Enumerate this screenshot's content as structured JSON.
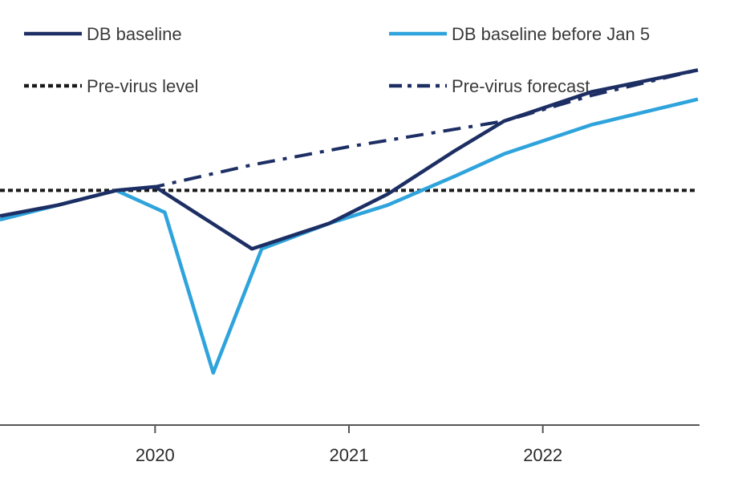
{
  "chart_data": {
    "type": "line",
    "title": "",
    "xlabel": "",
    "ylabel": "",
    "x_ticks": [
      "2020",
      "2021",
      "2022"
    ],
    "xlim": [
      2019.2,
      2022.8
    ],
    "ylim": [
      0,
      100
    ],
    "grid": false,
    "legend_position": "top",
    "series": [
      {
        "name": "DB baseline",
        "color": "#1c2e63",
        "style": "solid",
        "points": [
          [
            2019.2,
            54
          ],
          [
            2019.5,
            57
          ],
          [
            2019.8,
            61
          ],
          [
            2020.0,
            62
          ],
          [
            2020.5,
            45
          ],
          [
            2020.9,
            52
          ],
          [
            2021.2,
            60
          ],
          [
            2021.55,
            72
          ],
          [
            2021.8,
            80
          ],
          [
            2022.25,
            88
          ],
          [
            2022.8,
            94
          ]
        ]
      },
      {
        "name": "DB baseline before Jan 5",
        "color": "#2ea3dc",
        "style": "solid",
        "points": [
          [
            2019.2,
            53
          ],
          [
            2019.5,
            57
          ],
          [
            2019.8,
            61
          ],
          [
            2020.05,
            55
          ],
          [
            2020.3,
            11
          ],
          [
            2020.55,
            45
          ],
          [
            2020.9,
            52
          ],
          [
            2021.2,
            57
          ],
          [
            2021.55,
            65
          ],
          [
            2021.8,
            71
          ],
          [
            2022.25,
            79
          ],
          [
            2022.8,
            86
          ]
        ]
      },
      {
        "name": "Pre-virus level",
        "color": "#1a1a1a",
        "style": "dotted",
        "points": [
          [
            2019.2,
            61
          ],
          [
            2022.8,
            61
          ]
        ]
      },
      {
        "name": "Pre-virus forecast",
        "color": "#1c2e63",
        "style": "dashdot",
        "points": [
          [
            2019.2,
            53
          ],
          [
            2019.8,
            61
          ],
          [
            2020.0,
            62
          ],
          [
            2020.5,
            68
          ],
          [
            2021.0,
            73
          ],
          [
            2021.8,
            80
          ],
          [
            2022.25,
            87
          ],
          [
            2022.8,
            94
          ]
        ]
      }
    ]
  }
}
